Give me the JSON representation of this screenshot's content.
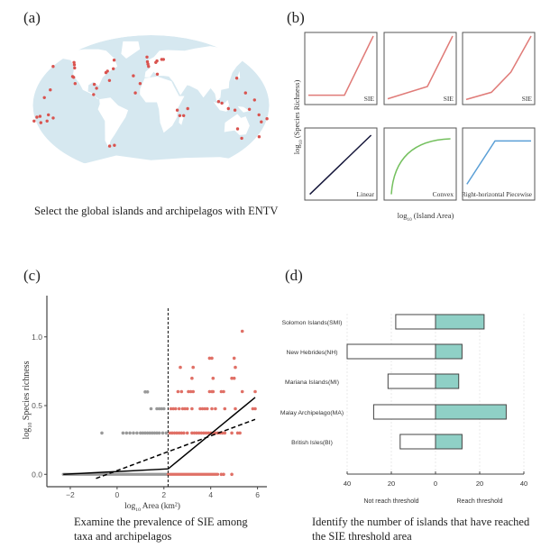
{
  "panels": {
    "a": {
      "label": "(a)",
      "caption": "Select the global islands and archipelagos with ENTV",
      "map": {
        "ocean_color": "#d6e8f0",
        "land_color": "#ffffff",
        "point_color": "#d9534f",
        "points_lonlat": [
          [
            -160,
            50
          ],
          [
            -128,
            55
          ],
          [
            -126,
            52
          ],
          [
            -124,
            48
          ],
          [
            -124,
            37
          ],
          [
            -122,
            36
          ],
          [
            -118,
            28
          ],
          [
            -88,
            27
          ],
          [
            -84,
            22
          ],
          [
            -65,
            32
          ],
          [
            -72,
            42
          ],
          [
            -70,
            44
          ],
          [
            -61,
            47
          ],
          [
            -62,
            58
          ],
          [
            -88,
            14
          ],
          [
            -28,
            38
          ],
          [
            -17,
            28
          ],
          [
            -24,
            16
          ],
          [
            -7,
            62
          ],
          [
            -6,
            56
          ],
          [
            -5,
            53
          ],
          [
            -4,
            50
          ],
          [
            8,
            55
          ],
          [
            10,
            57
          ],
          [
            18,
            59
          ],
          [
            21,
            59
          ],
          [
            10,
            40
          ],
          [
            103,
            5
          ],
          [
            108,
            3
          ],
          [
            135,
            35
          ],
          [
            145,
            16
          ],
          [
            158,
            7
          ],
          [
            150,
            -5
          ],
          [
            118,
            -4
          ],
          [
            128,
            -6
          ],
          [
            40,
            -6
          ],
          [
            50,
            -13
          ],
          [
            44,
            -13
          ],
          [
            56,
            -4
          ],
          [
            165,
            -12
          ],
          [
            170,
            -21
          ],
          [
            178,
            -17
          ],
          [
            135,
            -30
          ],
          [
            145,
            -42
          ],
          [
            172,
            -40
          ],
          [
            -175,
            -15
          ],
          [
            -170,
            -14
          ],
          [
            -160,
            -20
          ],
          [
            -157,
            -12
          ],
          [
            -150,
            -16
          ],
          [
            -170,
            -22
          ],
          [
            -180,
            -20
          ],
          [
            -68,
            -52
          ],
          [
            -60,
            -51
          ],
          [
            -155,
            20
          ],
          [
            -163,
            10
          ]
        ]
      }
    },
    "b": {
      "label": "(b)",
      "ylabel_prefix": "log",
      "ylabel_sub": "10",
      "ylabel_suffix": " (Species Richness)",
      "xlabel_prefix": "log",
      "xlabel_sub": "10",
      "xlabel_suffix": " (Island Area)",
      "subplots": [
        {
          "name": "sie-1",
          "label": "SIE",
          "color": "#e07b78",
          "points": [
            [
              0.05,
              0.13
            ],
            [
              0.55,
              0.13
            ],
            [
              0.95,
              0.95
            ]
          ],
          "curve": false
        },
        {
          "name": "sie-2",
          "label": "SIE",
          "color": "#e07b78",
          "points": [
            [
              0.05,
              0.08
            ],
            [
              0.6,
              0.25
            ],
            [
              0.95,
              0.95
            ]
          ],
          "curve": false
        },
        {
          "name": "sie-3",
          "label": "SIE",
          "color": "#e07b78",
          "points": [
            [
              0.05,
              0.07
            ],
            [
              0.4,
              0.17
            ],
            [
              0.67,
              0.45
            ],
            [
              0.95,
              0.95
            ]
          ],
          "curve": false
        },
        {
          "name": "linear",
          "label": "Linear",
          "color": "#15163a",
          "points": [
            [
              0.07,
              0.08
            ],
            [
              0.92,
              0.9
            ]
          ],
          "curve": false
        },
        {
          "name": "convex",
          "label": "Convex",
          "color": "#74c05e",
          "points": [
            [
              0.1,
              0.08
            ],
            [
              0.92,
              0.85
            ]
          ],
          "curve": true
        },
        {
          "name": "right-horizontal-piecewise",
          "label": "Right-horizontal Piecewise",
          "color": "#5a9fd6",
          "points": [
            [
              0.06,
              0.22
            ],
            [
              0.45,
              0.82
            ],
            [
              0.95,
              0.82
            ]
          ],
          "curve": false
        }
      ]
    },
    "c": {
      "label": "(c)",
      "caption_lines": [
        "Examine the prevalence of SIE among",
        "taxa and archipelagos"
      ]
    },
    "d": {
      "label": "(d)",
      "caption_lines": [
        "Identify the number of islands that have reached",
        "the SIE threshold area"
      ]
    }
  },
  "chart_data": [
    {
      "type": "scatter",
      "panel": "c",
      "title": "",
      "xlabel_prefix": "log",
      "xlabel_sub": "10",
      "xlabel_suffix": " Area (km²)",
      "ylabel_prefix": "log",
      "ylabel_sub": "10",
      "ylabel_suffix": " Species richness",
      "xlim": [
        -3,
        6.4
      ],
      "ylim": [
        -0.09,
        1.3
      ],
      "xticks": [
        -2,
        0,
        2,
        4,
        6
      ],
      "yticks": [
        0.0,
        0.5,
        1.0
      ],
      "ytick_labels": [
        "0.0",
        "0.5",
        "1.0"
      ],
      "threshold_x": 2.18,
      "series": [
        {
          "name": "below-threshold",
          "color": "#999999",
          "points": [
            [
              1.2,
              0.6
            ],
            [
              1.3,
              0.6
            ],
            [
              1.45,
              0.477
            ],
            [
              1.7,
              0.477
            ],
            [
              1.8,
              0.477
            ],
            [
              1.9,
              0.477
            ],
            [
              2.0,
              0.477
            ],
            [
              -0.65,
              0.301
            ],
            [
              0.25,
              0.301
            ],
            [
              0.4,
              0.301
            ],
            [
              0.55,
              0.301
            ],
            [
              0.7,
              0.301
            ],
            [
              0.85,
              0.301
            ],
            [
              1.0,
              0.301
            ],
            [
              1.1,
              0.301
            ],
            [
              1.2,
              0.301
            ],
            [
              1.3,
              0.301
            ],
            [
              1.4,
              0.301
            ],
            [
              1.5,
              0.301
            ],
            [
              1.6,
              0.301
            ],
            [
              1.7,
              0.301
            ],
            [
              1.8,
              0.301
            ],
            [
              1.95,
              0.301
            ],
            [
              2.1,
              0.301
            ]
          ],
          "baseline_range": [
            -2.3,
            2.18
          ]
        },
        {
          "name": "above-threshold",
          "color": "#e07066",
          "points": [
            [
              5.35,
              1.041
            ],
            [
              3.95,
              0.845
            ],
            [
              4.05,
              0.845
            ],
            [
              5.0,
              0.845
            ],
            [
              2.7,
              0.778
            ],
            [
              3.25,
              0.778
            ],
            [
              5.05,
              0.778
            ],
            [
              3.2,
              0.699
            ],
            [
              4.1,
              0.699
            ],
            [
              4.9,
              0.699
            ],
            [
              5.0,
              0.699
            ],
            [
              2.6,
              0.602
            ],
            [
              2.75,
              0.602
            ],
            [
              3.05,
              0.602
            ],
            [
              3.15,
              0.602
            ],
            [
              3.25,
              0.602
            ],
            [
              3.95,
              0.602
            ],
            [
              4.05,
              0.602
            ],
            [
              4.1,
              0.602
            ],
            [
              4.45,
              0.602
            ],
            [
              4.55,
              0.602
            ],
            [
              5.35,
              0.602
            ],
            [
              5.9,
              0.602
            ],
            [
              2.3,
              0.477
            ],
            [
              2.4,
              0.477
            ],
            [
              2.5,
              0.477
            ],
            [
              2.65,
              0.477
            ],
            [
              2.8,
              0.477
            ],
            [
              2.9,
              0.477
            ],
            [
              3.0,
              0.477
            ],
            [
              3.2,
              0.477
            ],
            [
              3.55,
              0.477
            ],
            [
              3.65,
              0.477
            ],
            [
              3.75,
              0.477
            ],
            [
              3.85,
              0.477
            ],
            [
              4.05,
              0.477
            ],
            [
              4.2,
              0.477
            ],
            [
              4.6,
              0.477
            ],
            [
              5.05,
              0.477
            ],
            [
              5.8,
              0.477
            ],
            [
              5.9,
              0.477
            ],
            [
              2.25,
              0.301
            ],
            [
              2.35,
              0.301
            ],
            [
              2.45,
              0.301
            ],
            [
              2.55,
              0.301
            ],
            [
              2.65,
              0.301
            ],
            [
              2.75,
              0.301
            ],
            [
              2.85,
              0.301
            ],
            [
              3.0,
              0.301
            ],
            [
              3.2,
              0.301
            ],
            [
              3.3,
              0.301
            ],
            [
              3.4,
              0.301
            ],
            [
              3.5,
              0.301
            ],
            [
              3.6,
              0.301
            ],
            [
              3.7,
              0.301
            ],
            [
              3.8,
              0.301
            ],
            [
              3.9,
              0.301
            ],
            [
              4.0,
              0.301
            ],
            [
              4.1,
              0.301
            ],
            [
              4.2,
              0.301
            ],
            [
              4.3,
              0.301
            ],
            [
              4.4,
              0.301
            ],
            [
              4.5,
              0.301
            ],
            [
              4.6,
              0.301
            ],
            [
              4.9,
              0.301
            ],
            [
              5.15,
              0.301
            ],
            [
              5.25,
              0.301
            ],
            [
              4.45,
              0
            ],
            [
              4.55,
              0
            ],
            [
              4.9,
              0
            ]
          ],
          "baseline_range": [
            2.18,
            4.3
          ]
        }
      ],
      "lines": [
        {
          "name": "piecewise-fit",
          "style": "solid",
          "color": "#000000",
          "points": [
            [
              -2.3,
              0.0
            ],
            [
              2.18,
              0.04
            ],
            [
              5.9,
              0.56
            ]
          ]
        },
        {
          "name": "linear-fit",
          "style": "dashed",
          "color": "#000000",
          "points": [
            [
              -0.9,
              -0.03
            ],
            [
              5.9,
              0.4
            ]
          ]
        }
      ]
    },
    {
      "type": "bar",
      "panel": "d",
      "orientation": "horizontal-diverging",
      "categories": [
        "Solomon Islands(SMI)",
        "New Hebrides(NH)",
        "Mariana Islands(MI)",
        "Malay Archipelago(MA)",
        "British Isles(BI)"
      ],
      "series": [
        {
          "name": "Not reach threshold",
          "color": "#ffffff",
          "values": [
            18,
            40,
            21.5,
            28,
            16
          ]
        },
        {
          "name": "Reach threshold",
          "color": "#8fd0c6",
          "values": [
            22,
            12,
            10.5,
            32,
            12
          ]
        }
      ],
      "xlim": [
        -40,
        40
      ],
      "xticks": [
        -40,
        -20,
        0,
        20,
        40
      ],
      "xtick_labels": [
        "40",
        "20",
        "0",
        "20",
        "40"
      ],
      "left_axis_label": "Not reach threshold",
      "right_axis_label": "Reach threshold",
      "grid": true
    }
  ]
}
